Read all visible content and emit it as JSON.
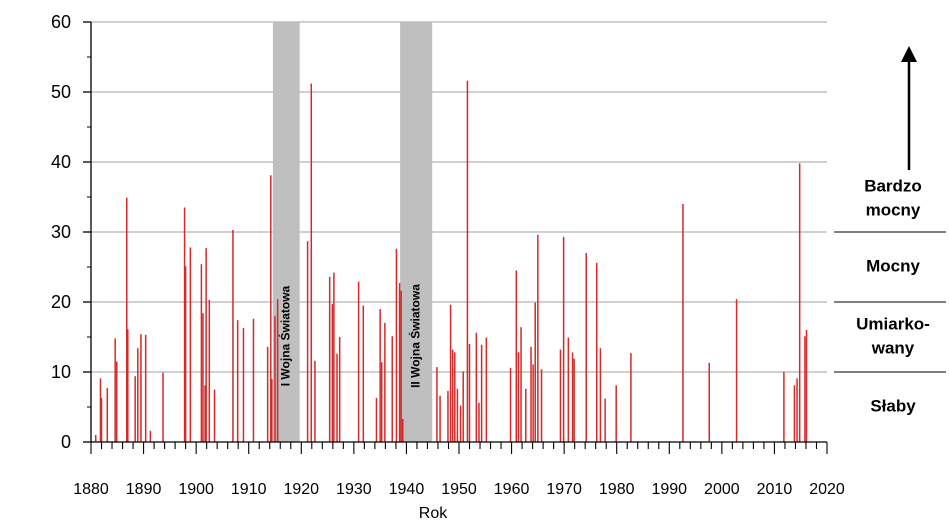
{
  "chart_data": {
    "type": "bar",
    "xlabel": "Rok",
    "ylabel": "",
    "title": "",
    "xlim": [
      1880,
      2020
    ],
    "ylim": [
      0,
      60
    ],
    "x_ticks": [
      1880,
      1890,
      1900,
      1910,
      1920,
      1930,
      1940,
      1950,
      1960,
      1970,
      1980,
      1990,
      2000,
      2010,
      2020
    ],
    "y_ticks": [
      0,
      10,
      20,
      30,
      40,
      50,
      60
    ],
    "grid": "horizontal",
    "bar_color": "#d42a2a",
    "war_color": "#bfbfbf",
    "wars": [
      {
        "label": "I Wojna Światowa",
        "start": 1914.6,
        "end": 1919.7
      },
      {
        "label": "II Wojna Światowa",
        "start": 1938.8,
        "end": 1944.9
      }
    ],
    "categories": [
      {
        "label_lines": [
          "Słaby"
        ],
        "from": 0,
        "to": 10
      },
      {
        "label_lines": [
          "Umiarko-",
          "wany"
        ],
        "from": 10,
        "to": 20
      },
      {
        "label_lines": [
          "Mocny"
        ],
        "from": 20,
        "to": 30
      },
      {
        "label_lines": [
          "Bardzo",
          "mocny"
        ],
        "from": 30,
        "to": 60
      }
    ],
    "arrow_color": "#000000",
    "x": [
      1880.9,
      1881.8,
      1882.0,
      1883.1,
      1884.6,
      1884.9,
      1886.8,
      1887.0,
      1888.4,
      1888.9,
      1889.5,
      1890.4,
      1891.3,
      1893.7,
      1897.8,
      1898.0,
      1898.9,
      1901.0,
      1901.3,
      1901.7,
      1901.9,
      1902.5,
      1903.5,
      1907.0,
      1907.9,
      1909.0,
      1910.9,
      1913.6,
      1914.2,
      1914.4,
      1915.0,
      1915.5,
      1921.2,
      1921.9,
      1922.6,
      1925.4,
      1925.9,
      1926.2,
      1926.8,
      1927.3,
      1930.9,
      1931.8,
      1934.3,
      1935.0,
      1935.3,
      1935.9,
      1937.3,
      1938.1,
      1938.7,
      1939.0,
      1939.3,
      1945.8,
      1946.4,
      1947.9,
      1948.4,
      1948.8,
      1949.2,
      1949.7,
      1950.3,
      1950.8,
      1951.6,
      1952.0,
      1953.3,
      1953.8,
      1954.3,
      1955.2,
      1959.8,
      1960.9,
      1961.3,
      1961.8,
      1962.7,
      1963.7,
      1964.1,
      1964.5,
      1965.0,
      1965.7,
      1969.3,
      1969.9,
      1970.8,
      1971.6,
      1971.9,
      1974.2,
      1976.2,
      1976.9,
      1977.8,
      1979.9,
      1982.7,
      1992.6,
      1997.6,
      2002.8,
      2011.8,
      2013.8,
      2014.3,
      2014.8,
      2015.8,
      2016.1
    ],
    "values": [
      1.0,
      9.1,
      6.3,
      7.7,
      14.8,
      11.5,
      34.9,
      16.1,
      9.4,
      13.4,
      15.4,
      15.3,
      1.6,
      9.9,
      33.5,
      25.1,
      27.8,
      25.4,
      18.4,
      8.1,
      27.7,
      20.3,
      7.5,
      30.3,
      17.4,
      16.3,
      17.6,
      13.6,
      38.1,
      9.0,
      18.0,
      20.4,
      28.7,
      51.2,
      11.6,
      23.6,
      19.7,
      24.2,
      12.6,
      15.0,
      22.9,
      19.5,
      6.3,
      19.0,
      11.4,
      17.0,
      15.1,
      27.6,
      22.7,
      21.6,
      3.3,
      10.7,
      6.6,
      7.3,
      19.6,
      13.2,
      12.8,
      7.6,
      5.2,
      10.1,
      51.6,
      14.0,
      15.6,
      5.6,
      13.9,
      14.9,
      10.6,
      24.5,
      12.8,
      16.4,
      7.6,
      13.6,
      11.1,
      19.9,
      29.6,
      10.4,
      13.2,
      29.3,
      14.9,
      12.8,
      11.9,
      27.0,
      25.6,
      13.4,
      6.2,
      8.1,
      12.7,
      34.0,
      11.3,
      20.4,
      10.0,
      8.1,
      9.1,
      39.8,
      15.1,
      16.0
    ]
  }
}
